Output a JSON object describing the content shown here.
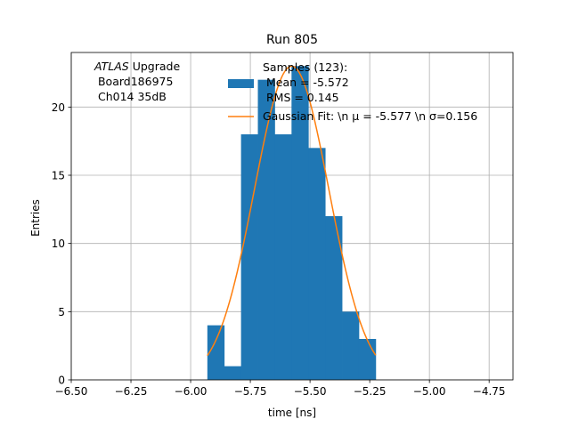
{
  "chart_data": {
    "type": "bar",
    "title": "Run 805",
    "xlabel": "time [ns]",
    "ylabel": "Entries",
    "xlim": [
      -6.5,
      -4.65
    ],
    "ylim": [
      0,
      24
    ],
    "grid": true,
    "xticks": [
      -6.5,
      -6.25,
      -6.0,
      -5.75,
      -5.5,
      -5.25,
      -5.0,
      -4.75
    ],
    "xtick_labels": [
      "−6.50",
      "−6.25",
      "−6.00",
      "−5.75",
      "−5.50",
      "−5.25",
      "−5.00",
      "−4.75"
    ],
    "yticks": [
      0,
      5,
      10,
      15,
      20
    ],
    "ytick_labels": [
      "0",
      "5",
      "10",
      "15",
      "20"
    ],
    "histogram": {
      "color": "#1f77b4",
      "bin_edges": [
        -5.93,
        -5.8595,
        -5.789,
        -5.7185,
        -5.648,
        -5.5775,
        -5.507,
        -5.4365,
        -5.366,
        -5.2955,
        -5.225
      ],
      "bin_starts": [
        -5.93,
        -5.86,
        -5.79,
        -5.72,
        -5.65,
        -5.58,
        -5.51,
        -5.44,
        -5.37,
        -5.3
      ],
      "bin_ends": [
        -5.86,
        -5.79,
        -5.72,
        -5.65,
        -5.58,
        -5.51,
        -5.44,
        -5.37,
        -5.3,
        -5.22
      ],
      "counts": [
        4,
        1,
        18,
        22,
        18,
        23,
        17,
        12,
        5,
        3
      ]
    },
    "gaussian_fit": {
      "color": "#ff7f0e",
      "mu": -5.577,
      "sigma": 0.156,
      "amplitude": 23.0,
      "x_range": [
        -5.93,
        -5.225
      ]
    },
    "legend": {
      "location": "upper center",
      "entries": [
        {
          "kind": "patch",
          "color": "#1f77b4",
          "lines": [
            "Samples (123):",
            " Mean = -5.572",
            " RMS = 0.145"
          ]
        },
        {
          "kind": "line",
          "color": "#ff7f0e",
          "lines": [
            "Gaussian Fit: \\n μ = -5.577 \\n σ=0.156"
          ]
        }
      ]
    },
    "annotation": {
      "location": "upper left",
      "line1_italic": "ATLAS",
      "line1_rest": " Upgrade",
      "line2": " Board186975",
      "line3": " Ch014 35dB"
    }
  }
}
